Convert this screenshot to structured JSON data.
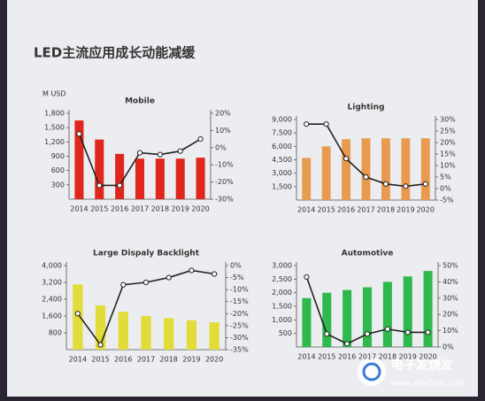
{
  "title": "LED主流应用成长动能减缓",
  "watermark": {
    "name": "电子发烧友",
    "url": "www.elecfans.com"
  },
  "chart_data": [
    {
      "type": "bar",
      "title": "Mobile",
      "y_label": "M USD",
      "categories": [
        "2014",
        "2015",
        "2016",
        "2017",
        "2018",
        "2019",
        "2020"
      ],
      "series": [
        {
          "color": "#e0271d",
          "values": [
            1650,
            1250,
            950,
            850,
            850,
            850,
            870
          ]
        },
        {
          "type": "line",
          "axis": "y2",
          "color": "#222222",
          "values": [
            8,
            -22,
            -22,
            -3,
            -4,
            -2,
            5
          ]
        }
      ],
      "ylim": [
        0,
        1800
      ],
      "yticks": [
        300,
        600,
        900,
        {
          "value": 1200,
          "label": "1,200"
        },
        {
          "value": 1500,
          "label": "1,500"
        },
        {
          "value": 1800,
          "label": "1,800"
        }
      ],
      "y2lim": [
        -30,
        20
      ],
      "y2ticks": [
        {
          "value": -30,
          "label": "-30%"
        },
        {
          "value": -20,
          "label": "-20%"
        },
        {
          "value": -10,
          "label": "-10%"
        },
        {
          "value": 0,
          "label": "0%"
        },
        {
          "value": 10,
          "label": "10%"
        },
        {
          "value": 20,
          "label": "20%"
        }
      ]
    },
    {
      "type": "bar",
      "title": "Lighting",
      "categories": [
        "2014",
        "2015",
        "2016",
        "2017",
        "2018",
        "2019",
        "2020"
      ],
      "series": [
        {
          "color": "#e89a4f",
          "values": [
            4700,
            6000,
            6800,
            6900,
            6900,
            6900,
            6900
          ]
        },
        {
          "type": "line",
          "axis": "y2",
          "color": "#222222",
          "values": [
            28,
            28,
            13,
            5,
            2,
            1,
            2
          ]
        }
      ],
      "ylim": [
        0,
        9000
      ],
      "yticks": [
        {
          "value": 1500,
          "label": "1,500"
        },
        {
          "value": 3000,
          "label": "3,000"
        },
        {
          "value": 4500,
          "label": "4,500"
        },
        {
          "value": 6000,
          "label": "6,000"
        },
        {
          "value": 7500,
          "label": "7,500"
        },
        {
          "value": 9000,
          "label": "9,000"
        }
      ],
      "y2lim": [
        -5,
        30
      ],
      "y2ticks": [
        {
          "value": -5,
          "label": "-5%"
        },
        {
          "value": 0,
          "label": "0%"
        },
        {
          "value": 5,
          "label": "5%"
        },
        {
          "value": 10,
          "label": "10%"
        },
        {
          "value": 15,
          "label": "15%"
        },
        {
          "value": 20,
          "label": "20%"
        },
        {
          "value": 25,
          "label": "25%"
        },
        {
          "value": 30,
          "label": "30%"
        }
      ]
    },
    {
      "type": "bar",
      "title": "Large Dispaly Backlight",
      "categories": [
        "2014",
        "2015",
        "2016",
        "2017",
        "2018",
        "2019",
        "2020"
      ],
      "series": [
        {
          "color": "#e2dc3a",
          "values": [
            3100,
            2100,
            1800,
            1600,
            1500,
            1400,
            1300
          ]
        },
        {
          "type": "line",
          "axis": "y2",
          "color": "#222222",
          "values": [
            -20,
            -33,
            -8,
            -7,
            -5,
            -2,
            -3.5
          ]
        }
      ],
      "ylim": [
        0,
        4000
      ],
      "yticks": [
        800,
        {
          "value": 1600,
          "label": "1,600"
        },
        {
          "value": 2400,
          "label": "2,400"
        },
        {
          "value": 3200,
          "label": "3,200"
        },
        {
          "value": 4000,
          "label": "4,000"
        }
      ],
      "y2lim": [
        -35,
        0
      ],
      "y2ticks": [
        {
          "value": -35,
          "label": "-35%"
        },
        {
          "value": -30,
          "label": "-30%"
        },
        {
          "value": -25,
          "label": "-25%"
        },
        {
          "value": -20,
          "label": "-20%"
        },
        {
          "value": -15,
          "label": "-15%"
        },
        {
          "value": -10,
          "label": "-10%"
        },
        {
          "value": -5,
          "label": "-5%"
        },
        {
          "value": 0,
          "label": "0%"
        }
      ]
    },
    {
      "type": "bar",
      "title": "Automotive",
      "categories": [
        "2014",
        "2015",
        "2016",
        "2017",
        "2018",
        "2019",
        "2020"
      ],
      "series": [
        {
          "color": "#2fb84b",
          "values": [
            1800,
            2000,
            2100,
            2200,
            2400,
            2600,
            2800
          ]
        },
        {
          "type": "line",
          "axis": "y2",
          "color": "#222222",
          "values": [
            43,
            8,
            2,
            8,
            11,
            9,
            9
          ]
        }
      ],
      "ylim": [
        0,
        3000
      ],
      "yticks": [
        500,
        {
          "value": 1000,
          "label": "1,000"
        },
        {
          "value": 1500,
          "label": "1,500"
        },
        {
          "value": 2000,
          "label": "2,000"
        },
        {
          "value": 2500,
          "label": "2,500"
        },
        {
          "value": 3000,
          "label": "3,000"
        }
      ],
      "y2lim": [
        0,
        50
      ],
      "y2ticks": [
        {
          "value": 0,
          "label": "0%"
        },
        {
          "value": 10,
          "label": "10%"
        },
        {
          "value": 20,
          "label": "20%"
        },
        {
          "value": 30,
          "label": "30%"
        },
        {
          "value": 40,
          "label": "40%"
        },
        {
          "value": 50,
          "label": "50%"
        }
      ]
    }
  ]
}
